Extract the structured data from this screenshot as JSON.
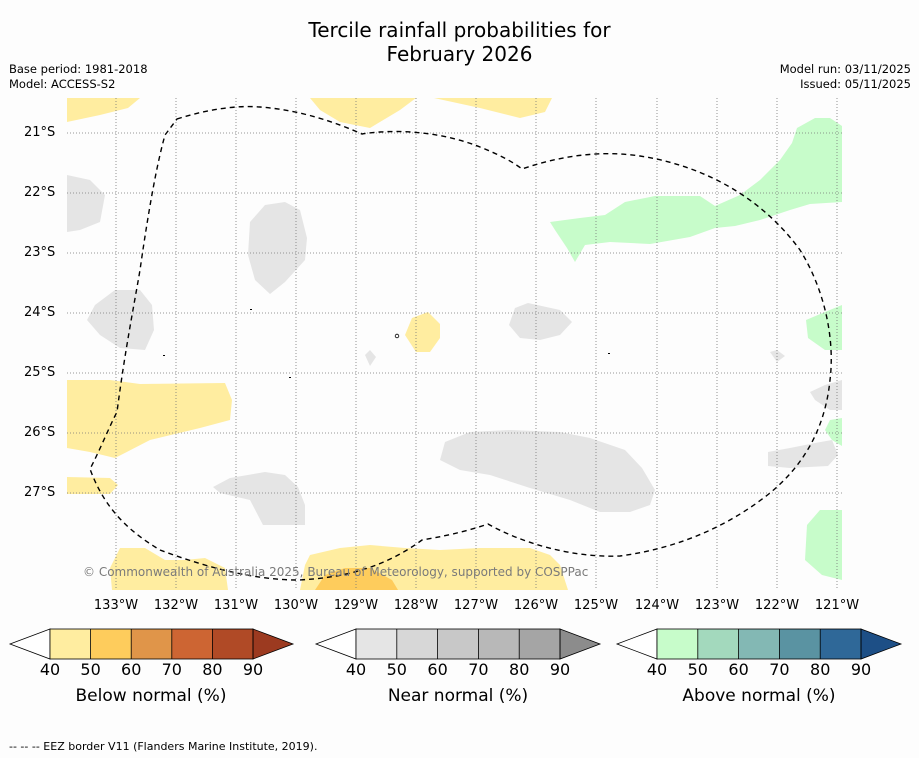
{
  "title_line1": "Tercile rainfall probabilities for",
  "title_line2": "February 2026",
  "base_period": "Base period: 1981-2018",
  "model": "Model: ACCESS-S2",
  "model_run": "Model run: 03/11/2025",
  "issued": "Issued: 05/11/2025",
  "lat_labels": [
    "21°S",
    "22°S",
    "23°S",
    "24°S",
    "25°S",
    "26°S",
    "27°S"
  ],
  "lon_labels": [
    "133°W",
    "132°W",
    "131°W",
    "130°W",
    "129°W",
    "128°W",
    "127°W",
    "126°W",
    "125°W",
    "124°W",
    "123°W",
    "122°W",
    "121°W"
  ],
  "copyright": "© Commonwealth of Australia 2025, Bureau of Meteorology, supported by COSPPac",
  "colorbars": [
    {
      "title": "Below normal (%)",
      "ticks": [
        "40",
        "50",
        "60",
        "70",
        "80",
        "90"
      ],
      "colors": [
        "#ffeda0",
        "#fecc5c",
        "#e09549",
        "#cd6533",
        "#b04a26"
      ],
      "arrow": "#9c3a20"
    },
    {
      "title": "Near normal (%)",
      "ticks": [
        "40",
        "50",
        "60",
        "70",
        "80",
        "90"
      ],
      "colors": [
        "#e5e5e5",
        "#d7d7d7",
        "#c8c8c8",
        "#b8b8b8",
        "#a5a5a5"
      ],
      "arrow": "#8c8c8c"
    },
    {
      "title": "Above normal (%)",
      "ticks": [
        "40",
        "50",
        "60",
        "70",
        "80",
        "90"
      ],
      "colors": [
        "#c7fcca",
        "#a3d9bd",
        "#83b8b4",
        "#5a93a2",
        "#2f6898"
      ],
      "arrow": "#1d4f86"
    }
  ],
  "footer": "--  --  -- EEZ border V11 (Flanders Marine Institute, 2019)."
}
